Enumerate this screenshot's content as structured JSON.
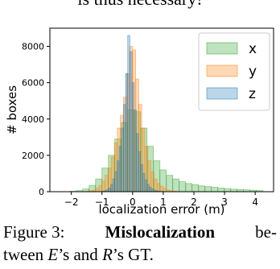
{
  "top_text": "is thus necessary!",
  "chart_data": {
    "type": "histogram",
    "xlabel": "localization error (m)",
    "ylabel": "# boxes",
    "xlim": [
      -2.7,
      4.6
    ],
    "ylim": [
      0,
      9000
    ],
    "xticks": [
      {
        "value": -2,
        "label": "−2"
      },
      {
        "value": -1,
        "label": "−1"
      },
      0,
      1,
      2,
      3,
      4
    ],
    "yticks": [
      0,
      2000,
      4000,
      6000,
      8000
    ],
    "legend": "upper right",
    "series": [
      {
        "name": "x",
        "color": "#2ca02c",
        "bins": [
          -2.05,
          -1.84,
          -1.63,
          -1.42,
          -1.21,
          -1.0,
          -0.79,
          -0.58,
          -0.37,
          -0.16,
          0.05,
          0.26,
          0.47,
          0.68,
          0.89,
          1.1,
          1.31,
          1.52,
          1.73,
          1.94,
          2.15,
          2.36,
          2.57,
          2.78,
          2.99,
          3.2,
          3.41,
          3.62,
          3.83,
          4.04,
          4.25
        ],
        "values": [
          20,
          60,
          150,
          350,
          700,
          1300,
          2000,
          2900,
          3800,
          4500,
          4400,
          3500,
          2500,
          1700,
          1200,
          900,
          700,
          550,
          450,
          380,
          320,
          280,
          240,
          200,
          170,
          140,
          120,
          100,
          80,
          60
        ]
      },
      {
        "name": "y",
        "color": "#ff7f0e",
        "bins": [
          -1.5,
          -1.4,
          -1.3,
          -1.2,
          -1.1,
          -1.0,
          -0.9,
          -0.8,
          -0.7,
          -0.6,
          -0.5,
          -0.4,
          -0.3,
          -0.2,
          -0.1,
          0.0,
          0.1,
          0.2,
          0.3,
          0.4,
          0.5,
          0.6,
          0.7,
          0.8,
          0.9,
          1.0,
          1.1,
          1.2,
          1.3,
          1.4,
          1.5
        ],
        "values": [
          30,
          60,
          100,
          200,
          350,
          600,
          900,
          1300,
          1900,
          2700,
          3500,
          4200,
          5200,
          6500,
          8000,
          7800,
          6200,
          4800,
          3500,
          2500,
          1700,
          1100,
          700,
          450,
          300,
          180,
          100,
          60,
          30,
          15
        ]
      },
      {
        "name": "z",
        "color": "#1f77b4",
        "bins": [
          -1.0,
          -0.93,
          -0.86,
          -0.79,
          -0.72,
          -0.65,
          -0.58,
          -0.51,
          -0.44,
          -0.37,
          -0.3,
          -0.23,
          -0.16,
          -0.09,
          -0.02,
          0.05,
          0.12,
          0.19,
          0.26,
          0.33,
          0.4,
          0.47,
          0.54,
          0.61,
          0.68,
          0.75,
          0.82,
          0.89,
          0.96,
          1.03,
          1.1
        ],
        "values": [
          20,
          50,
          100,
          200,
          400,
          700,
          1100,
          1700,
          2500,
          3500,
          4800,
          6500,
          8600,
          7700,
          6000,
          4500,
          3200,
          2200,
          1500,
          1000,
          650,
          400,
          250,
          150,
          90,
          50,
          30,
          15,
          8,
          4
        ]
      }
    ]
  },
  "caption": {
    "label": "Figure 3:",
    "bold": "Mislocalization",
    "rest1": "be-",
    "line2_start": "tween",
    "e": "E",
    "mid": "’s and",
    "r": "R",
    "end": "’s GT."
  }
}
